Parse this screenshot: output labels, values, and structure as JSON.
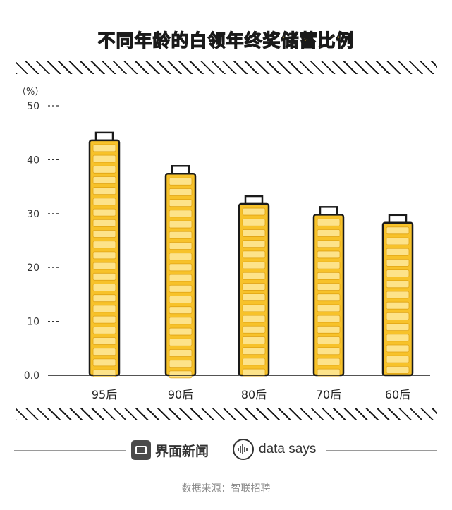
{
  "title": "不同年龄的白领年终奖储蓄比例",
  "chart_data": {
    "type": "bar",
    "title": "不同年龄的白领年终奖储蓄比例",
    "ylabel": "（%）",
    "xlabel": "",
    "categories": [
      "95后",
      "90后",
      "80后",
      "70后",
      "60后"
    ],
    "values": [
      43.6,
      37.4,
      31.8,
      29.8,
      28.3
    ],
    "ylim": [
      0,
      50
    ],
    "yticks": [
      "0.0",
      "10",
      "20",
      "30",
      "40",
      "50"
    ],
    "grid": false,
    "colors": {
      "coin": "#f7c22a",
      "coin_highlight": "#fde38a",
      "outline": "#1a1a1a"
    }
  },
  "footer": {
    "brand_jiemian": "界面新闻",
    "brand_datasays": "data says",
    "source": "数据来源：智联招聘"
  },
  "watermarks": [
    "界面新闻",
    "data says"
  ]
}
